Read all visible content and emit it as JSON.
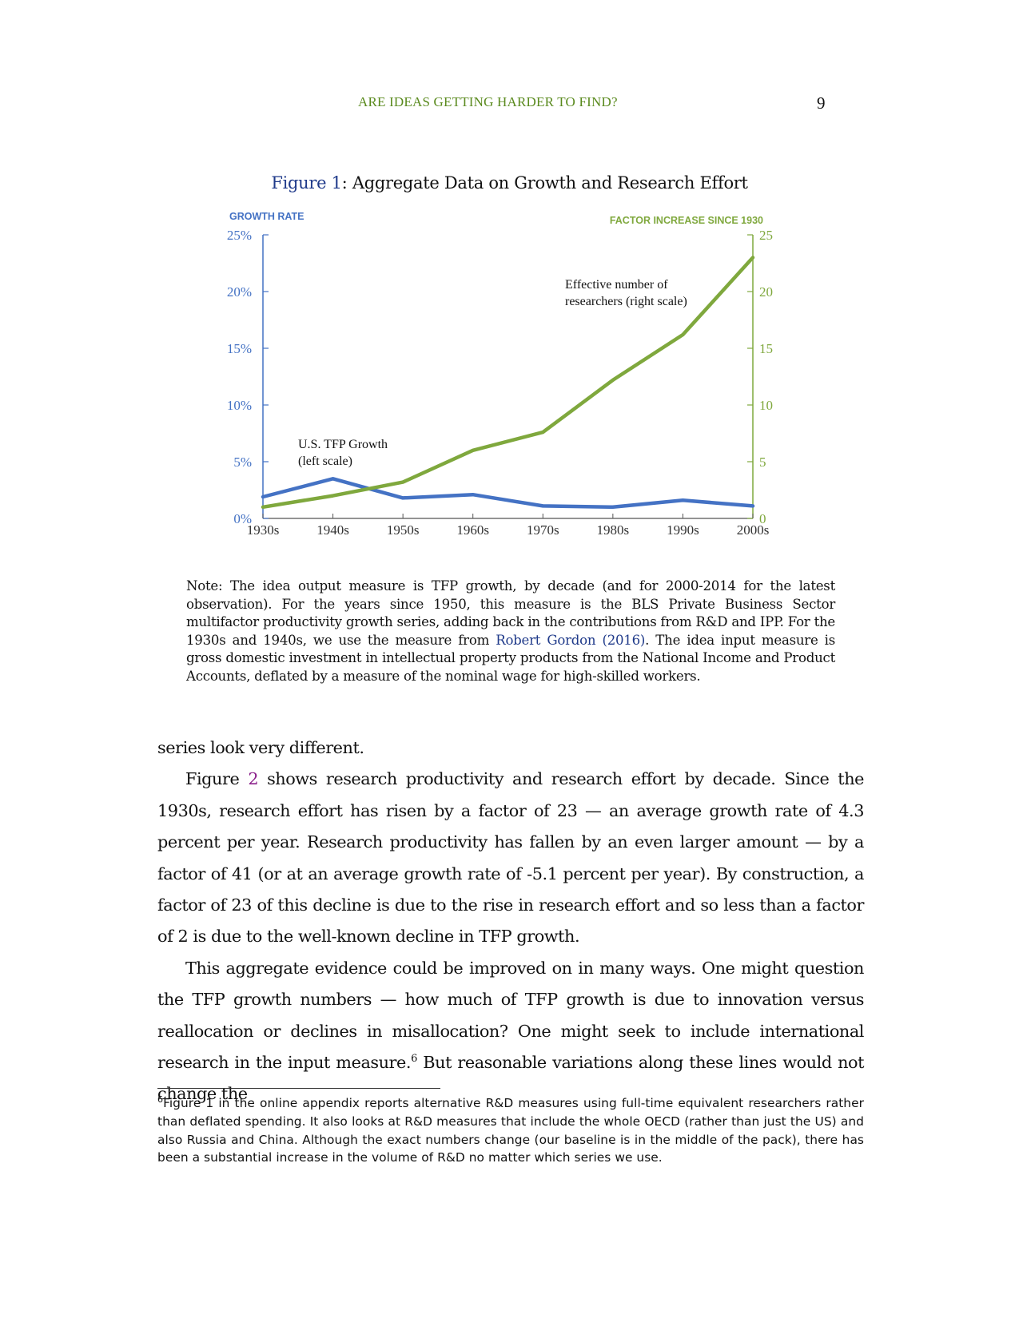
{
  "header": {
    "running_title": "ARE IDEAS GETTING HARDER TO FIND?",
    "page_number": "9"
  },
  "figure": {
    "label": "Figure 1",
    "caption": ": Aggregate Data on Growth and Research Effort"
  },
  "chart_data": {
    "type": "line",
    "categories": [
      "1930s",
      "1940s",
      "1950s",
      "1960s",
      "1970s",
      "1980s",
      "1990s",
      "2000s"
    ],
    "left_axis": {
      "title": "GROWTH RATE",
      "ylim": [
        0,
        25
      ],
      "ticks": [
        0,
        5,
        10,
        15,
        20,
        25
      ],
      "tick_labels": [
        "0%",
        "5%",
        "10%",
        "15%",
        "20%",
        "25%"
      ]
    },
    "right_axis": {
      "title": "FACTOR INCREASE SINCE 1930",
      "ylim": [
        0,
        25
      ],
      "ticks": [
        0,
        5,
        10,
        15,
        20,
        25
      ],
      "tick_labels": [
        "0",
        "5",
        "10",
        "15",
        "20",
        "25"
      ]
    },
    "series": [
      {
        "axis": "left",
        "color": "#4472c4",
        "annotation": [
          "U.S. TFP Growth",
          "(left scale)"
        ],
        "values": [
          1.9,
          3.5,
          1.8,
          2.1,
          1.1,
          1.0,
          1.6,
          1.1
        ]
      },
      {
        "axis": "right",
        "color": "#7fa83d",
        "annotation": [
          "Effective number of",
          "researchers (right scale)"
        ],
        "values": [
          1.0,
          2.0,
          3.2,
          6.0,
          7.6,
          12.2,
          16.2,
          23.0
        ]
      }
    ],
    "left_axis_color": "#4472c4",
    "right_axis_color": "#7fa83d",
    "grid": false
  },
  "note": {
    "lines": [
      "Note: The idea output measure is TFP growth, by decade (and for 2000-2014 for the latest observation). For the years since 1950, this measure is the BLS Private Business Sector multifactor productivity growth series, adding back in the contributions from R&D and IPP. For the 1930s and 1940s, we use the measure from ",
      "Robert Gordon (2016)",
      ". The idea input measure is gross domestic investment in intellectual property products from the National Income and Product Accounts, deflated by a measure of the nominal wage for high-skilled workers."
    ]
  },
  "body": {
    "p1": "series look very different.",
    "p2_before": "Figure ",
    "p2_link": "2",
    "p2_after": " shows research productivity and research effort by decade. Since the 1930s, research effort has risen by a factor of 23 — an average growth rate of 4.3 percent per year. Research productivity has fallen by an even larger amount — by a factor of 41 (or at an average growth rate of -5.1 percent per year). By construction, a factor of 23 of this decline is due to the rise in research effort and so less than a factor of 2 is due to the well-known decline in TFP growth.",
    "p3_before": "This aggregate evidence could be improved on in many ways. One might question the TFP growth numbers — how much of TFP growth is due to innovation versus reallocation or declines in misallocation? One might seek to include international research in the input measure.",
    "p3_sup": "6",
    "p3_after": " But reasonable variations along these lines would not change the"
  },
  "footnote": {
    "mark": "6",
    "text": "Figure 1 in the online appendix reports alternative R&D measures using full-time equivalent researchers rather than deflated spending. It also looks at R&D measures that include the whole OECD (rather than just the US) and also Russia and China. Although the exact numbers change (our baseline is in the middle of the pack), there has been a substantial increase in the volume of R&D no matter which series we use."
  }
}
